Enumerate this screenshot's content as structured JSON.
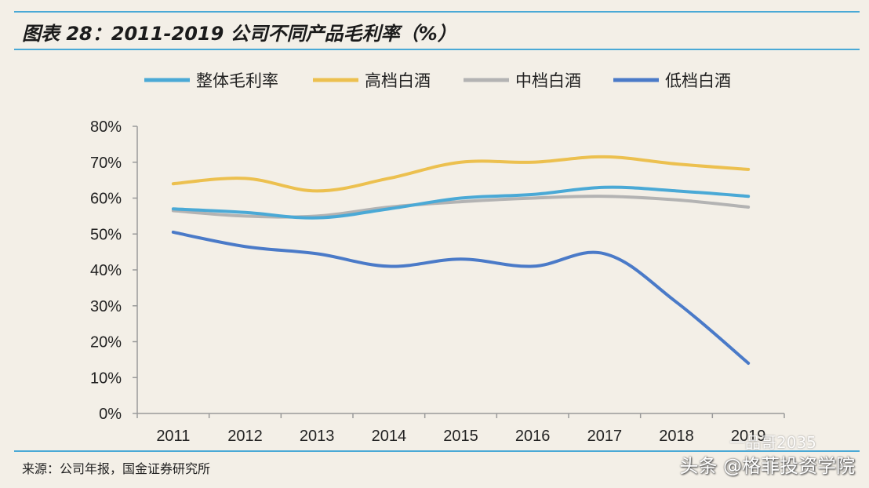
{
  "title": "图表 28：2011-2019 公司不同产品毛利率（%）",
  "source": "来源：公司年报，国金证券研究所",
  "watermark": "头条 @格菲投资学院",
  "watermark_faint": "一品哥2035",
  "colors": {
    "background": "#f3efe7",
    "rule": "#4aa9d6",
    "series": [
      "#4aa9d6",
      "#ecc04f",
      "#b3b3b3",
      "#4a7ac8"
    ]
  },
  "chart_data": {
    "type": "line",
    "title": "2011-2019 公司不同产品毛利率（%）",
    "xlabel": "",
    "ylabel": "",
    "categories": [
      "2011",
      "2012",
      "2013",
      "2014",
      "2015",
      "2016",
      "2017",
      "2018",
      "2019"
    ],
    "ylim": [
      0,
      80
    ],
    "yticks": [
      "0%",
      "10%",
      "20%",
      "30%",
      "40%",
      "50%",
      "60%",
      "70%",
      "80%"
    ],
    "legend_position": "top",
    "grid": false,
    "series": [
      {
        "name": "整体毛利率",
        "values": [
          57,
          56,
          54.5,
          57,
          60,
          61,
          63,
          62,
          60.5
        ]
      },
      {
        "name": "高档白酒",
        "values": [
          64,
          65.5,
          62,
          65.5,
          70,
          70,
          71.5,
          69.5,
          68
        ]
      },
      {
        "name": "中档白酒",
        "values": [
          56.5,
          55,
          55,
          57.5,
          59,
          60,
          60.5,
          59.5,
          57.5
        ]
      },
      {
        "name": "低档白酒",
        "values": [
          50.5,
          46.5,
          44.5,
          41,
          43,
          41,
          44.5,
          31,
          14
        ]
      }
    ]
  }
}
